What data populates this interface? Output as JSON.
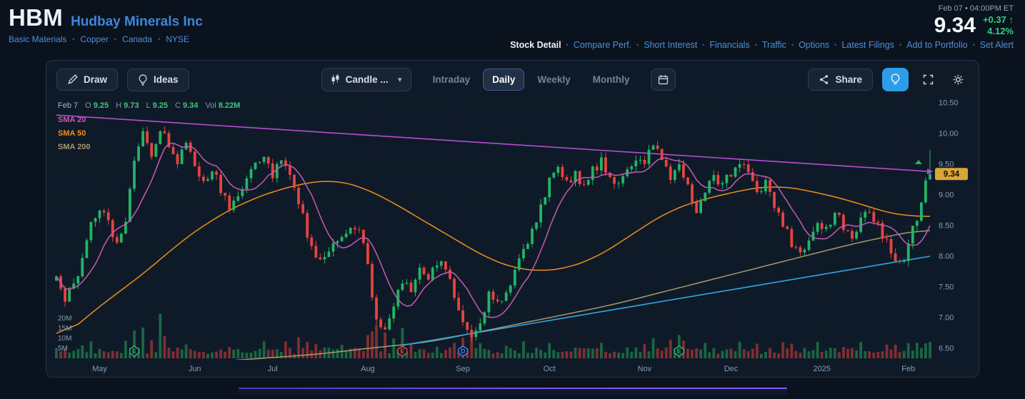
{
  "header": {
    "symbol": "HBM",
    "company": "Hudbay Minerals Inc",
    "breadcrumbs": [
      "Basic Materials",
      "Copper",
      "Canada",
      "NYSE"
    ],
    "sep": "•",
    "timestamp": "Feb 07 • 04:00PM ET",
    "price": "9.34",
    "change": "+0.37",
    "change_arrow": "↑",
    "change_pct": "4.12%",
    "nav": [
      {
        "label": "Stock Detail",
        "active": true
      },
      {
        "label": "Compare Perf."
      },
      {
        "label": "Short Interest"
      },
      {
        "label": "Financials"
      },
      {
        "label": "Traffic"
      },
      {
        "label": "Options"
      },
      {
        "label": "Latest Filings"
      },
      {
        "label": "Add to Portfolio"
      },
      {
        "label": "Set Alert"
      }
    ]
  },
  "toolbar": {
    "draw_label": "Draw",
    "ideas_label": "Ideas",
    "chart_type_label": "Candle ...",
    "caret": "▾",
    "timeframes": [
      {
        "label": "Intraday",
        "active": false
      },
      {
        "label": "Daily",
        "active": true
      },
      {
        "label": "Weekly",
        "active": false
      },
      {
        "label": "Monthly",
        "active": false
      }
    ],
    "share_label": "Share"
  },
  "chart": {
    "ohlc": {
      "date": "Feb 7",
      "labels": [
        "O",
        "H",
        "L",
        "C",
        "Vol"
      ],
      "open": "9.25",
      "high": "9.73",
      "low": "9.25",
      "close": "9.34",
      "volume": "8.22M"
    },
    "legend": [
      {
        "label": "SMA 20",
        "color": "#c75ab2"
      },
      {
        "label": "SMA 50",
        "color": "#ef8e1b"
      },
      {
        "label": "SMA 200",
        "color": "#a59a6e"
      }
    ],
    "y_ticks": [
      "10.50",
      "10.00",
      "9.50",
      "9.00",
      "8.50",
      "8.00",
      "7.50",
      "7.00",
      "6.50"
    ],
    "vol_ticks": [
      "20M",
      "15M",
      "10M",
      "5M"
    ],
    "price_badge": "9.34",
    "price_badge_color": "#d9a637"
  },
  "chart_data": {
    "type": "candlestick",
    "symbol": "HBM",
    "timeframe": "Daily",
    "days": 203,
    "ylim": [
      6.5,
      10.5
    ],
    "months": [
      [
        "May",
        10
      ],
      [
        "Jun",
        32
      ],
      [
        "Jul",
        50
      ],
      [
        "Aug",
        72
      ],
      [
        "Sep",
        94
      ],
      [
        "Oct",
        114
      ],
      [
        "Nov",
        136
      ],
      [
        "Dec",
        156
      ],
      [
        "2025",
        177
      ],
      [
        "Feb",
        197
      ]
    ],
    "price_anchors": [
      [
        0,
        7.6
      ],
      [
        2,
        7.3
      ],
      [
        4,
        7.5
      ],
      [
        6,
        8.0
      ],
      [
        8,
        8.55
      ],
      [
        10,
        8.8
      ],
      [
        12,
        8.55
      ],
      [
        14,
        8.2
      ],
      [
        16,
        8.6
      ],
      [
        18,
        9.6
      ],
      [
        20,
        10.0
      ],
      [
        22,
        9.65
      ],
      [
        24,
        10.05
      ],
      [
        26,
        9.85
      ],
      [
        28,
        9.55
      ],
      [
        30,
        9.85
      ],
      [
        32,
        9.5
      ],
      [
        34,
        9.25
      ],
      [
        36,
        9.4
      ],
      [
        38,
        9.1
      ],
      [
        40,
        8.75
      ],
      [
        42,
        9.0
      ],
      [
        44,
        9.3
      ],
      [
        46,
        9.55
      ],
      [
        48,
        9.65
      ],
      [
        50,
        9.35
      ],
      [
        52,
        9.55
      ],
      [
        54,
        9.35
      ],
      [
        56,
        8.9
      ],
      [
        58,
        8.35
      ],
      [
        60,
        7.95
      ],
      [
        62,
        8.05
      ],
      [
        64,
        8.2
      ],
      [
        66,
        8.35
      ],
      [
        68,
        8.5
      ],
      [
        70,
        8.4
      ],
      [
        72,
        7.95
      ],
      [
        73,
        7.4
      ],
      [
        74,
        6.95
      ],
      [
        76,
        6.8
      ],
      [
        78,
        7.25
      ],
      [
        80,
        7.55
      ],
      [
        82,
        7.45
      ],
      [
        84,
        7.75
      ],
      [
        86,
        7.6
      ],
      [
        88,
        7.9
      ],
      [
        90,
        7.8
      ],
      [
        92,
        7.35
      ],
      [
        94,
        7.0
      ],
      [
        96,
        6.7
      ],
      [
        98,
        6.95
      ],
      [
        100,
        7.35
      ],
      [
        102,
        7.25
      ],
      [
        104,
        7.45
      ],
      [
        106,
        7.7
      ],
      [
        108,
        8.1
      ],
      [
        110,
        8.45
      ],
      [
        112,
        8.8
      ],
      [
        114,
        9.25
      ],
      [
        116,
        9.45
      ],
      [
        118,
        9.2
      ],
      [
        120,
        9.35
      ],
      [
        122,
        9.15
      ],
      [
        124,
        9.4
      ],
      [
        126,
        9.55
      ],
      [
        128,
        9.3
      ],
      [
        130,
        9.15
      ],
      [
        132,
        9.45
      ],
      [
        134,
        9.6
      ],
      [
        136,
        9.55
      ],
      [
        138,
        9.85
      ],
      [
        140,
        9.6
      ],
      [
        142,
        9.25
      ],
      [
        144,
        9.45
      ],
      [
        146,
        9.1
      ],
      [
        148,
        8.75
      ],
      [
        150,
        9.1
      ],
      [
        152,
        9.3
      ],
      [
        154,
        9.15
      ],
      [
        156,
        9.35
      ],
      [
        158,
        9.55
      ],
      [
        160,
        9.3
      ],
      [
        162,
        9.0
      ],
      [
        164,
        9.2
      ],
      [
        166,
        8.8
      ],
      [
        168,
        8.55
      ],
      [
        170,
        8.2
      ],
      [
        172,
        8.0
      ],
      [
        174,
        8.3
      ],
      [
        176,
        8.5
      ],
      [
        178,
        8.45
      ],
      [
        180,
        8.7
      ],
      [
        182,
        8.5
      ],
      [
        184,
        8.35
      ],
      [
        186,
        8.6
      ],
      [
        188,
        8.75
      ],
      [
        190,
        8.5
      ],
      [
        192,
        8.2
      ],
      [
        194,
        7.95
      ],
      [
        196,
        7.9
      ],
      [
        197,
        8.25
      ],
      [
        199,
        8.6
      ],
      [
        201,
        9.2
      ],
      [
        202,
        9.34
      ]
    ],
    "sma50_anchors": [
      [
        0,
        6.6
      ],
      [
        6,
        6.95
      ],
      [
        12,
        7.3
      ],
      [
        20,
        7.7
      ],
      [
        28,
        8.2
      ],
      [
        36,
        8.6
      ],
      [
        44,
        8.9
      ],
      [
        52,
        9.1
      ],
      [
        58,
        9.2
      ],
      [
        64,
        9.25
      ],
      [
        70,
        9.15
      ],
      [
        76,
        8.95
      ],
      [
        82,
        8.7
      ],
      [
        88,
        8.45
      ],
      [
        94,
        8.2
      ],
      [
        100,
        7.95
      ],
      [
        106,
        7.8
      ],
      [
        112,
        7.75
      ],
      [
        118,
        7.8
      ],
      [
        124,
        7.95
      ],
      [
        130,
        8.2
      ],
      [
        136,
        8.5
      ],
      [
        142,
        8.75
      ],
      [
        148,
        8.9
      ],
      [
        154,
        9.0
      ],
      [
        160,
        9.1
      ],
      [
        166,
        9.15
      ],
      [
        172,
        9.1
      ],
      [
        178,
        9.0
      ],
      [
        184,
        8.9
      ],
      [
        190,
        8.75
      ],
      [
        196,
        8.65
      ],
      [
        202,
        8.65
      ]
    ],
    "sma200_anchors": [
      [
        0,
        6.05
      ],
      [
        20,
        6.2
      ],
      [
        40,
        6.3
      ],
      [
        60,
        6.4
      ],
      [
        72,
        6.5
      ],
      [
        86,
        6.6
      ],
      [
        100,
        6.8
      ],
      [
        114,
        7.0
      ],
      [
        128,
        7.2
      ],
      [
        142,
        7.45
      ],
      [
        156,
        7.7
      ],
      [
        170,
        7.95
      ],
      [
        184,
        8.2
      ],
      [
        194,
        8.35
      ],
      [
        202,
        8.45
      ]
    ],
    "trendlines": [
      {
        "color": "#b44fd0",
        "from": [
          0,
          10.3
        ],
        "to": [
          202,
          9.38
        ]
      },
      {
        "color": "#2fa9e0",
        "from": [
          80,
          6.55
        ],
        "to": [
          202,
          8.0
        ]
      }
    ],
    "events": [
      {
        "d": 18,
        "label": "E",
        "color": "#2fbf6b"
      },
      {
        "d": 80,
        "label": "E",
        "color": "#e8483f"
      },
      {
        "d": 94,
        "label": "D",
        "color": "#4189f5"
      },
      {
        "d": 144,
        "label": "E",
        "color": "#2fbf6b"
      }
    ],
    "last": {
      "o": 9.25,
      "h": 9.73,
      "l": 9.25,
      "c": 9.34,
      "vol": 8.22
    },
    "volume_spikes": {
      "6": 3,
      "8": 5,
      "16": 4,
      "18": 9,
      "20": 11,
      "22": 6,
      "24": 17.5,
      "25": 7,
      "30": 4,
      "40": 3,
      "48": 4,
      "53": 5,
      "56": 6,
      "58": 5,
      "60": 4,
      "66": 3,
      "72": 7,
      "73": 10,
      "74": 13,
      "76": 8,
      "78": 5,
      "80": 10,
      "82": 5,
      "88": 3,
      "92": 4,
      "94": 6,
      "96": 9,
      "98": 5,
      "104": 3,
      "108": 5,
      "114": 4,
      "120": 3,
      "126": 3,
      "132": 3,
      "136": 4,
      "138": 6,
      "142": 4,
      "144": 8,
      "145": 5,
      "150": 3,
      "158": 4,
      "162": 3,
      "168": 3,
      "170": 4,
      "176": 3,
      "182": 3,
      "186": 3,
      "192": 3,
      "194": 4,
      "197": 3,
      "199": 3,
      "201": 3
    },
    "colors": {
      "up": "#23b465",
      "down": "#e8433f",
      "vol_up": "#1d7a4a",
      "vol_down": "#9e3434"
    }
  }
}
